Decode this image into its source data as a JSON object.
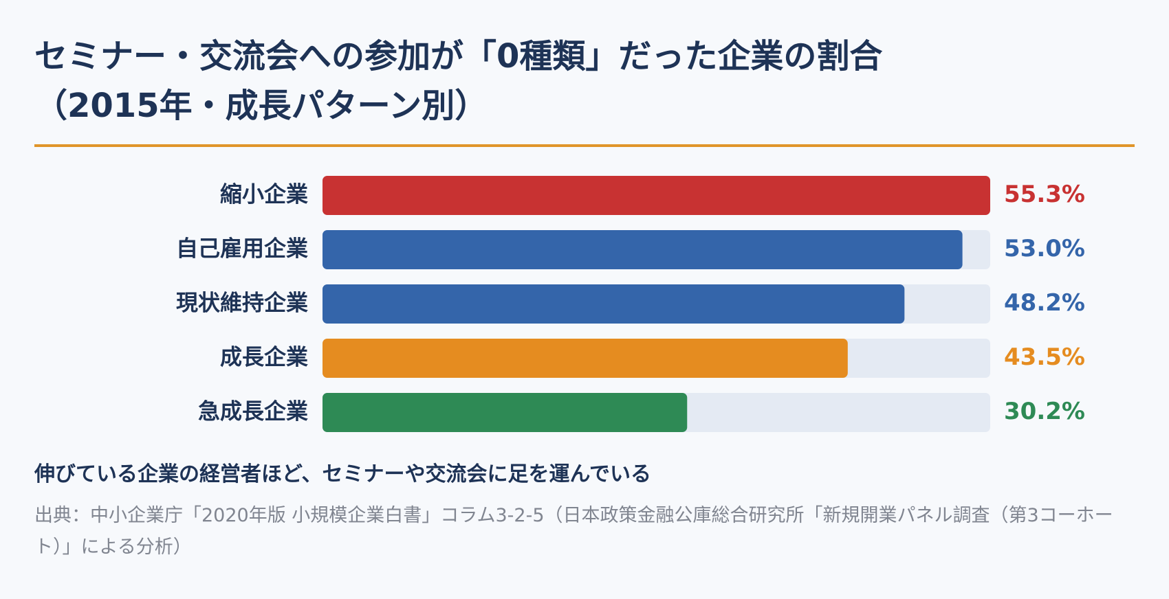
{
  "chart_data": {
    "type": "bar",
    "orientation": "horizontal",
    "title": [
      "セミナー・交流会への参加が「0種類」だった企業の割合",
      "（2015年・成長パターン別）"
    ],
    "categories": [
      "縮小企業",
      "自己雇用企業",
      "現状維持企業",
      "成長企業",
      "急成長企業"
    ],
    "values": [
      55.3,
      53.0,
      48.2,
      43.5,
      30.2
    ],
    "value_labels": [
      "55.3%",
      "53.0%",
      "48.2%",
      "43.5%",
      "30.2%"
    ],
    "colors": [
      "#c83232",
      "#3465aa",
      "#3465aa",
      "#e58c20",
      "#2e8a55"
    ],
    "track_color": "#e4eaf3",
    "xlim": [
      0,
      55.3
    ],
    "annotation": "伸びている企業の経営者ほど、セミナーや交流会に足を運んでいる",
    "source": "出典：中小企業庁「2020年版 小規模企業白書」コラム3-2-5（日本政策金融公庫総合研究所「新規開業パネル調査（第3コーホート）」による分析）"
  }
}
